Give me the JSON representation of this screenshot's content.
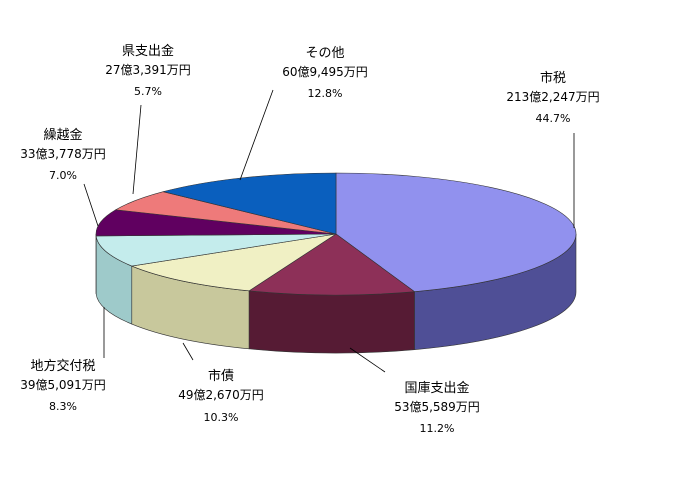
{
  "chart_data": {
    "type": "pie",
    "title": "",
    "slices": [
      {
        "name": "市税",
        "amount": "213億2,247万円",
        "percent": "44.7%",
        "value": 44.7,
        "color": "#9191ee",
        "side": "#4f4f96"
      },
      {
        "name": "国庫支出金",
        "amount": "53億5,589万円",
        "percent": "11.2%",
        "value": 11.2,
        "color": "#8d3058",
        "side": "#561b34"
      },
      {
        "name": "市債",
        "amount": "49億2,670万円",
        "percent": "10.3%",
        "value": 10.3,
        "color": "#f0f0c4",
        "side": "#c8c89c"
      },
      {
        "name": "地方交付税",
        "amount": "39億5,091万円",
        "percent": "8.3%",
        "value": 8.3,
        "color": "#c4ecec",
        "side": "#9ecaca"
      },
      {
        "name": "繰越金",
        "amount": "33億3,778万円",
        "percent": "7.0%",
        "value": 7.0,
        "color": "#600060",
        "side": "#3a003a"
      },
      {
        "name": "県支出金",
        "amount": "27億3,391万円",
        "percent": "5.7%",
        "value": 5.7,
        "color": "#ee7a7a",
        "side": "#a84e4e"
      },
      {
        "name": "その他",
        "amount": "60億9,495万円",
        "percent": "12.8%",
        "value": 12.8,
        "color": "#0a5fbe",
        "side": "#063a76"
      }
    ]
  }
}
